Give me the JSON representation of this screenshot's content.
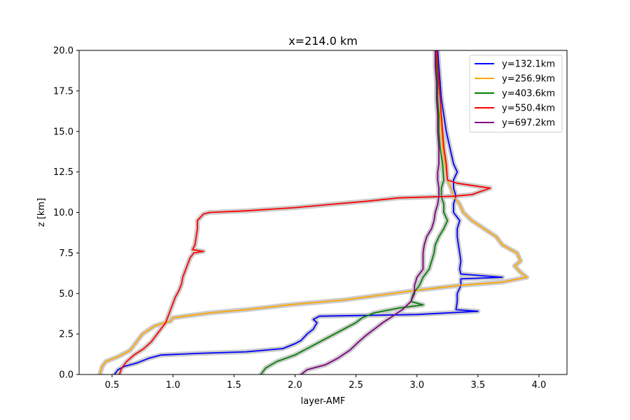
{
  "chart_data": {
    "type": "line",
    "title": "x=214.0 km",
    "xlabel": "layer-AMF",
    "ylabel": "z [km]",
    "xlim": [
      0.23,
      4.23
    ],
    "ylim": [
      0,
      20
    ],
    "xticks": [
      0.5,
      1.0,
      1.5,
      2.0,
      2.5,
      3.0,
      3.5,
      4.0
    ],
    "xtick_labels": [
      "0.5",
      "1.0",
      "1.5",
      "2.0",
      "2.5",
      "3.0",
      "3.5",
      "4.0"
    ],
    "yticks": [
      0,
      2.5,
      5,
      7.5,
      10,
      12.5,
      15,
      17.5,
      20
    ],
    "ytick_labels": [
      "0.0",
      "2.5",
      "5.0",
      "7.5",
      "10.0",
      "12.5",
      "15.0",
      "17.5",
      "20.0"
    ],
    "grid": false,
    "legend_position": "top-right",
    "uncertainty_band_color": "#cccccc",
    "series": [
      {
        "name": "y=132.1km",
        "color": "#0000ff",
        "points": [
          [
            0.52,
            0
          ],
          [
            0.55,
            0.3
          ],
          [
            0.6,
            0.5
          ],
          [
            0.7,
            0.7
          ],
          [
            0.8,
            1.0
          ],
          [
            0.9,
            1.2
          ],
          [
            1.2,
            1.3
          ],
          [
            1.6,
            1.4
          ],
          [
            1.9,
            1.6
          ],
          [
            2.0,
            1.9
          ],
          [
            2.05,
            2.1
          ],
          [
            2.1,
            2.5
          ],
          [
            2.15,
            2.8
          ],
          [
            2.18,
            3.2
          ],
          [
            2.15,
            3.4
          ],
          [
            2.2,
            3.6
          ],
          [
            2.6,
            3.65
          ],
          [
            3.0,
            3.7
          ],
          [
            3.5,
            3.9
          ],
          [
            3.32,
            4.0
          ],
          [
            3.33,
            4.5
          ],
          [
            3.33,
            5.0
          ],
          [
            3.36,
            5.5
          ],
          [
            3.36,
            5.9
          ],
          [
            3.7,
            6.0
          ],
          [
            3.36,
            6.2
          ],
          [
            3.35,
            6.5
          ],
          [
            3.36,
            7.0
          ],
          [
            3.35,
            7.5
          ],
          [
            3.34,
            8.0
          ],
          [
            3.33,
            8.5
          ],
          [
            3.33,
            9.0
          ],
          [
            3.35,
            9.5
          ],
          [
            3.3,
            10.0
          ],
          [
            3.3,
            10.5
          ],
          [
            3.32,
            11.0
          ],
          [
            3.3,
            11.5
          ],
          [
            3.3,
            12.0
          ],
          [
            3.33,
            12.5
          ],
          [
            3.3,
            13.0
          ],
          [
            3.27,
            14.0
          ],
          [
            3.24,
            15.0
          ],
          [
            3.22,
            16.0
          ],
          [
            3.2,
            17.0
          ],
          [
            3.19,
            18.0
          ],
          [
            3.18,
            19.0
          ],
          [
            3.17,
            20.0
          ]
        ]
      },
      {
        "name": "y=256.9km",
        "color": "#ffa500",
        "points": [
          [
            0.4,
            0
          ],
          [
            0.42,
            0.5
          ],
          [
            0.45,
            0.8
          ],
          [
            0.55,
            1.1
          ],
          [
            0.65,
            1.5
          ],
          [
            0.7,
            2.0
          ],
          [
            0.75,
            2.5
          ],
          [
            0.85,
            3.0
          ],
          [
            0.98,
            3.3
          ],
          [
            1.0,
            3.5
          ],
          [
            1.3,
            3.8
          ],
          [
            1.6,
            4.0
          ],
          [
            1.95,
            4.3
          ],
          [
            2.4,
            4.6
          ],
          [
            2.7,
            4.9
          ],
          [
            3.0,
            5.2
          ],
          [
            3.35,
            5.5
          ],
          [
            3.7,
            5.7
          ],
          [
            3.9,
            6.0
          ],
          [
            3.85,
            6.3
          ],
          [
            3.8,
            6.7
          ],
          [
            3.85,
            7.0
          ],
          [
            3.82,
            7.5
          ],
          [
            3.7,
            8.0
          ],
          [
            3.65,
            8.5
          ],
          [
            3.55,
            9.0
          ],
          [
            3.45,
            9.5
          ],
          [
            3.38,
            10.0
          ],
          [
            3.35,
            10.5
          ],
          [
            3.3,
            11.0
          ],
          [
            3.28,
            11.5
          ],
          [
            3.25,
            12.0
          ],
          [
            3.23,
            13.0
          ],
          [
            3.21,
            14.0
          ],
          [
            3.2,
            15.0
          ],
          [
            3.19,
            16.0
          ],
          [
            3.19,
            17.0
          ],
          [
            3.18,
            18.0
          ],
          [
            3.17,
            19.0
          ],
          [
            3.16,
            20.0
          ]
        ]
      },
      {
        "name": "y=403.6km",
        "color": "#008000",
        "points": [
          [
            1.72,
            0
          ],
          [
            1.76,
            0.4
          ],
          [
            1.85,
            0.8
          ],
          [
            2.0,
            1.2
          ],
          [
            2.1,
            1.6
          ],
          [
            2.2,
            2.0
          ],
          [
            2.3,
            2.4
          ],
          [
            2.4,
            2.8
          ],
          [
            2.5,
            3.2
          ],
          [
            2.55,
            3.5
          ],
          [
            2.65,
            3.8
          ],
          [
            2.85,
            4.1
          ],
          [
            3.05,
            4.3
          ],
          [
            2.95,
            4.5
          ],
          [
            2.97,
            5.0
          ],
          [
            3.02,
            5.5
          ],
          [
            3.05,
            6.0
          ],
          [
            3.1,
            6.5
          ],
          [
            3.12,
            7.0
          ],
          [
            3.14,
            7.5
          ],
          [
            3.15,
            8.0
          ],
          [
            3.18,
            8.5
          ],
          [
            3.22,
            9.0
          ],
          [
            3.25,
            9.5
          ],
          [
            3.22,
            10.0
          ],
          [
            3.22,
            10.5
          ],
          [
            3.2,
            11.0
          ],
          [
            3.2,
            11.5
          ],
          [
            3.22,
            12.0
          ],
          [
            3.21,
            13.0
          ],
          [
            3.19,
            14.0
          ],
          [
            3.18,
            15.0
          ],
          [
            3.18,
            16.0
          ],
          [
            3.17,
            17.0
          ],
          [
            3.17,
            18.0
          ],
          [
            3.16,
            19.0
          ],
          [
            3.15,
            20.0
          ]
        ]
      },
      {
        "name": "y=550.4km",
        "color": "#ff0000",
        "points": [
          [
            0.56,
            0
          ],
          [
            0.58,
            0.4
          ],
          [
            0.62,
            0.8
          ],
          [
            0.68,
            1.2
          ],
          [
            0.76,
            1.6
          ],
          [
            0.82,
            2.0
          ],
          [
            0.86,
            2.4
          ],
          [
            0.9,
            2.8
          ],
          [
            0.94,
            3.2
          ],
          [
            0.96,
            3.6
          ],
          [
            0.98,
            4.0
          ],
          [
            1.0,
            4.4
          ],
          [
            1.02,
            4.8
          ],
          [
            1.05,
            5.2
          ],
          [
            1.07,
            5.6
          ],
          [
            1.08,
            6.0
          ],
          [
            1.1,
            6.4
          ],
          [
            1.12,
            6.8
          ],
          [
            1.14,
            7.2
          ],
          [
            1.17,
            7.5
          ],
          [
            1.25,
            7.6
          ],
          [
            1.16,
            7.7
          ],
          [
            1.18,
            8.0
          ],
          [
            1.19,
            8.5
          ],
          [
            1.2,
            9.0
          ],
          [
            1.2,
            9.5
          ],
          [
            1.25,
            9.9
          ],
          [
            1.3,
            10.0
          ],
          [
            1.6,
            10.1
          ],
          [
            2.0,
            10.3
          ],
          [
            2.3,
            10.5
          ],
          [
            2.6,
            10.7
          ],
          [
            2.85,
            10.9
          ],
          [
            3.3,
            11.0
          ],
          [
            3.45,
            11.1
          ],
          [
            3.6,
            11.5
          ],
          [
            3.33,
            11.8
          ],
          [
            3.25,
            12.0
          ],
          [
            3.24,
            13.0
          ],
          [
            3.22,
            14.0
          ],
          [
            3.21,
            15.0
          ],
          [
            3.2,
            16.0
          ],
          [
            3.19,
            17.0
          ],
          [
            3.18,
            18.0
          ],
          [
            3.17,
            19.0
          ],
          [
            3.16,
            20.0
          ]
        ]
      },
      {
        "name": "y=697.2km",
        "color": "#800080",
        "points": [
          [
            2.05,
            0
          ],
          [
            2.1,
            0.3
          ],
          [
            2.25,
            0.6
          ],
          [
            2.35,
            1.0
          ],
          [
            2.45,
            1.5
          ],
          [
            2.52,
            2.0
          ],
          [
            2.58,
            2.4
          ],
          [
            2.65,
            2.8
          ],
          [
            2.72,
            3.2
          ],
          [
            2.8,
            3.6
          ],
          [
            2.88,
            4.0
          ],
          [
            2.95,
            4.5
          ],
          [
            2.98,
            5.0
          ],
          [
            2.98,
            5.5
          ],
          [
            3.0,
            6.0
          ],
          [
            3.05,
            6.5
          ],
          [
            3.05,
            7.0
          ],
          [
            3.05,
            7.5
          ],
          [
            3.06,
            8.0
          ],
          [
            3.08,
            8.5
          ],
          [
            3.12,
            9.0
          ],
          [
            3.14,
            9.5
          ],
          [
            3.15,
            10.0
          ],
          [
            3.17,
            10.5
          ],
          [
            3.18,
            11.0
          ],
          [
            3.18,
            11.5
          ],
          [
            3.17,
            12.0
          ],
          [
            3.17,
            12.5
          ],
          [
            3.18,
            13.0
          ],
          [
            3.18,
            14.0
          ],
          [
            3.17,
            15.0
          ],
          [
            3.17,
            16.0
          ],
          [
            3.16,
            17.0
          ],
          [
            3.16,
            18.0
          ],
          [
            3.15,
            19.0
          ],
          [
            3.15,
            20.0
          ]
        ]
      }
    ]
  }
}
